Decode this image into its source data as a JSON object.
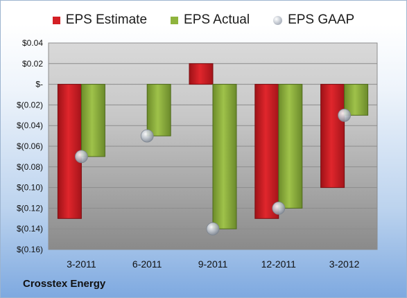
{
  "legend": {
    "estimate": "EPS Estimate",
    "actual": "EPS Actual",
    "gaap": "EPS GAAP"
  },
  "company": "Crosstex Energy",
  "colors": {
    "estimate": "#d41f25",
    "actual": "#8fb43d",
    "gaap": "#b8bec8"
  },
  "chart_data": {
    "type": "bar",
    "categories": [
      "3-2011",
      "6-2011",
      "9-2011",
      "12-2011",
      "3-2012"
    ],
    "series": [
      {
        "name": "EPS Estimate",
        "type": "bar",
        "values": [
          -0.13,
          null,
          0.02,
          -0.13,
          -0.1
        ]
      },
      {
        "name": "EPS Actual",
        "type": "bar",
        "values": [
          -0.07,
          -0.05,
          -0.14,
          -0.12,
          -0.03
        ]
      },
      {
        "name": "EPS GAAP",
        "type": "scatter",
        "values": [
          -0.07,
          -0.05,
          -0.14,
          -0.12,
          -0.03
        ]
      }
    ],
    "ylim": [
      -0.16,
      0.04
    ],
    "yticks": [
      0.04,
      0.02,
      0,
      -0.02,
      -0.04,
      -0.06,
      -0.08,
      -0.1,
      -0.12,
      -0.14,
      -0.16
    ],
    "ytick_labels": [
      "$0.04",
      "$0.02",
      "$-",
      "$(0.02)",
      "$(0.04)",
      "$(0.06)",
      "$(0.08)",
      "$(0.10)",
      "$(0.12)",
      "$(0.14)",
      "$(0.16)"
    ],
    "grid": true,
    "legend_position": "top"
  }
}
